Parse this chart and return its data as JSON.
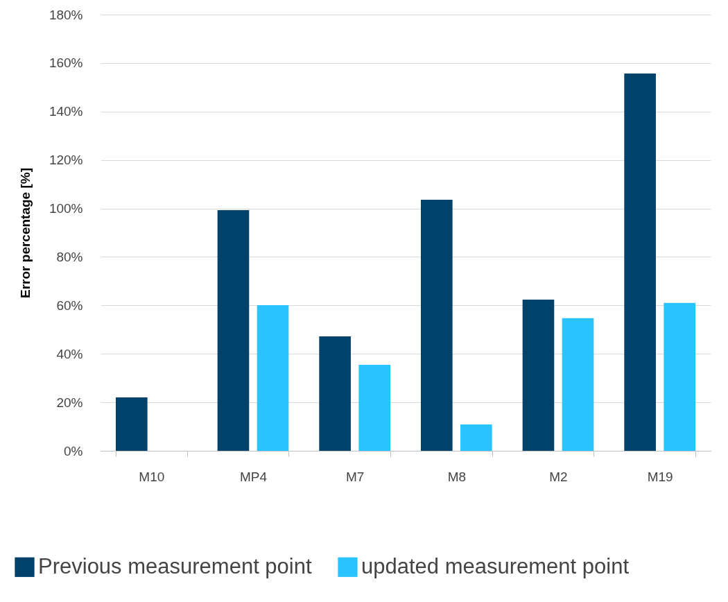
{
  "chart_data": {
    "type": "bar",
    "ylabel": "Error percentage [%]",
    "categories": [
      "M10",
      "MP4",
      "M7",
      "M8",
      "M2",
      "M19"
    ],
    "series": [
      {
        "name": "Previous measurement point",
        "color": "#00426a",
        "values": [
          22.0,
          99.3,
          47.2,
          103.6,
          62.4,
          155.7
        ]
      },
      {
        "name": "updated measurement point",
        "color": "#29c4ff",
        "values": [
          null,
          60.1,
          35.5,
          10.9,
          54.7,
          61.0
        ]
      }
    ],
    "ylim": [
      0,
      180
    ],
    "yticks": [
      {
        "value": 0,
        "label": "0%"
      },
      {
        "value": 20,
        "label": "20%"
      },
      {
        "value": 40,
        "label": "40%"
      },
      {
        "value": 60,
        "label": "60%"
      },
      {
        "value": 80,
        "label": "80%"
      },
      {
        "value": 100,
        "label": "100%"
      },
      {
        "value": 120,
        "label": "120%"
      },
      {
        "value": 140,
        "label": "140%"
      },
      {
        "value": 160,
        "label": "160%"
      },
      {
        "value": 180,
        "label": "180%"
      }
    ],
    "grid": "y",
    "legend": "bottom"
  }
}
